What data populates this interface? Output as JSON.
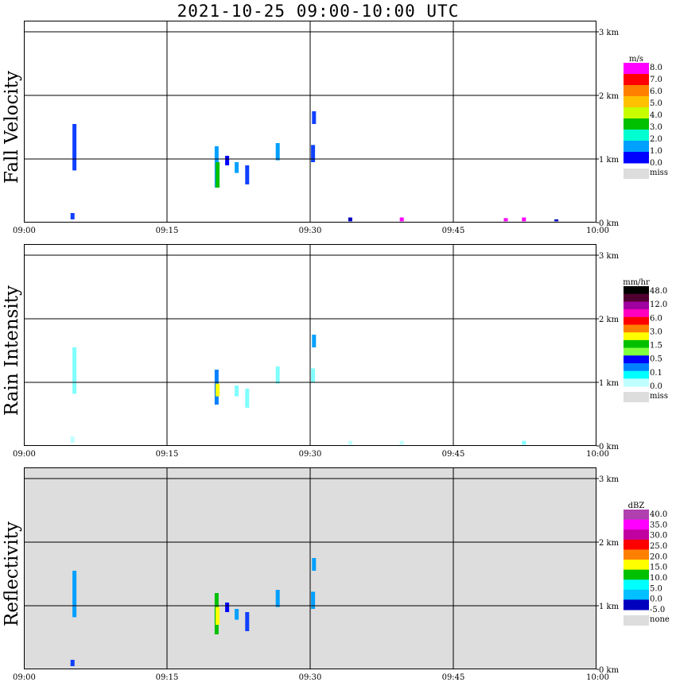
{
  "title": "2021-10-25   09:00-10:00 UTC",
  "x_tick_labels": [
    "09:00",
    "09:15",
    "09:30",
    "09:45",
    "10:00"
  ],
  "y_tick_labels": [
    "0 km",
    "1 km",
    "2 km",
    "3 km"
  ],
  "chart_data": [
    {
      "type": "heatmap",
      "ylabel": "Fall Velocity",
      "unit": "m/s",
      "xlim": [
        "09:00",
        "10:00"
      ],
      "ylim_km": [
        0,
        3
      ],
      "background": "#ffffff",
      "colorbar": {
        "labels": [
          "8.0",
          "7.0",
          "6.0",
          "5.0",
          "4.0",
          "3.0",
          "2.0",
          "1.0",
          "0.0"
        ],
        "colors": [
          "#ff00ff",
          "#ff0000",
          "#ff8000",
          "#ffc000",
          "#c8ff00",
          "#00c000",
          "#00ffd0",
          "#00a0ff",
          "#0000ff"
        ],
        "miss_label": "miss",
        "miss_color": "#dddddd"
      },
      "echoes": [
        {
          "t_min": 5.3,
          "km_lo": 0.82,
          "km_hi": 1.55,
          "color": "#1040ff"
        },
        {
          "t_min": 20.2,
          "km_lo": 0.55,
          "km_hi": 1.2,
          "color": "#00a0ff"
        },
        {
          "t_min": 20.3,
          "km_lo": 0.55,
          "km_hi": 0.95,
          "color": "#00c000"
        },
        {
          "t_min": 21.3,
          "km_lo": 0.9,
          "km_hi": 1.05,
          "color": "#0000ff"
        },
        {
          "t_min": 22.3,
          "km_lo": 0.78,
          "km_hi": 0.95,
          "color": "#00a0ff"
        },
        {
          "t_min": 23.4,
          "km_lo": 0.6,
          "km_hi": 0.9,
          "color": "#1040ff"
        },
        {
          "t_min": 26.6,
          "km_lo": 0.98,
          "km_hi": 1.25,
          "color": "#00a0ff"
        },
        {
          "t_min": 30.3,
          "km_lo": 0.95,
          "km_hi": 1.22,
          "color": "#1040ff"
        },
        {
          "t_min": 30.4,
          "km_lo": 1.55,
          "km_hi": 1.75,
          "color": "#1040ff"
        },
        {
          "t_min": 5.1,
          "km_lo": 0.05,
          "km_hi": 0.15,
          "color": "#1040ff"
        },
        {
          "t_min": 34.2,
          "km_lo": 0.02,
          "km_hi": 0.08,
          "color": "#0000c0"
        },
        {
          "t_min": 39.6,
          "km_lo": 0.02,
          "km_hi": 0.08,
          "color": "#ff00ff"
        },
        {
          "t_min": 50.5,
          "km_lo": 0.02,
          "km_hi": 0.07,
          "color": "#ff00ff"
        },
        {
          "t_min": 52.4,
          "km_lo": 0.02,
          "km_hi": 0.08,
          "color": "#ff00ff"
        },
        {
          "t_min": 55.8,
          "km_lo": 0.02,
          "km_hi": 0.05,
          "color": "#0000c0"
        }
      ]
    },
    {
      "type": "heatmap",
      "ylabel": "Rain Intensity",
      "unit": "mm/hr",
      "xlim": [
        "09:00",
        "10:00"
      ],
      "ylim_km": [
        0,
        3
      ],
      "background": "#ffffff",
      "colorbar": {
        "labels": [
          "48.0",
          "12.0",
          "6.0",
          "3.0",
          "1.5",
          "0.5",
          "0.1",
          "0.0"
        ],
        "colors": [
          "#000000",
          "#500030",
          "#a000a0",
          "#ff00c0",
          "#ff0000",
          "#ff8000",
          "#ffff00",
          "#00c000",
          "#80ff40",
          "#0000ff",
          "#0080ff",
          "#00ffff",
          "#c0ffff"
        ],
        "miss_label": "miss",
        "miss_color": "#dddddd"
      },
      "echoes": [
        {
          "t_min": 5.3,
          "km_lo": 0.82,
          "km_hi": 1.55,
          "color": "#80ffff"
        },
        {
          "t_min": 20.2,
          "km_lo": 0.65,
          "km_hi": 1.2,
          "color": "#0080ff"
        },
        {
          "t_min": 20.3,
          "km_lo": 0.78,
          "km_hi": 0.98,
          "color": "#ffff00"
        },
        {
          "t_min": 22.3,
          "km_lo": 0.78,
          "km_hi": 0.95,
          "color": "#80ffff"
        },
        {
          "t_min": 23.4,
          "km_lo": 0.6,
          "km_hi": 0.9,
          "color": "#80ffff"
        },
        {
          "t_min": 26.6,
          "km_lo": 0.98,
          "km_hi": 1.25,
          "color": "#80ffff"
        },
        {
          "t_min": 30.3,
          "km_lo": 1.0,
          "km_hi": 1.22,
          "color": "#80ffff"
        },
        {
          "t_min": 30.4,
          "km_lo": 1.55,
          "km_hi": 1.75,
          "color": "#00a0ff"
        },
        {
          "t_min": 5.1,
          "km_lo": 0.05,
          "km_hi": 0.15,
          "color": "#c0ffff"
        },
        {
          "t_min": 34.2,
          "km_lo": 0.02,
          "km_hi": 0.08,
          "color": "#c0ffff"
        },
        {
          "t_min": 39.6,
          "km_lo": 0.02,
          "km_hi": 0.08,
          "color": "#c0ffff"
        },
        {
          "t_min": 52.4,
          "km_lo": 0.02,
          "km_hi": 0.08,
          "color": "#80ffff"
        }
      ]
    },
    {
      "type": "heatmap",
      "ylabel": "Reflectivity",
      "unit": "dBZ",
      "xlim": [
        "09:00",
        "10:00"
      ],
      "ylim_km": [
        0,
        3
      ],
      "background": "#dddddd",
      "colorbar": {
        "labels": [
          "40.0",
          "35.0",
          "30.0",
          "25.0",
          "20.0",
          "15.0",
          "10.0",
          "5.0",
          "0.0",
          "-5.0"
        ],
        "colors": [
          "#b040b0",
          "#ff00ff",
          "#c000a0",
          "#ff0000",
          "#ff8000",
          "#ffff00",
          "#00c000",
          "#00ffff",
          "#00c0ff",
          "#0000c0"
        ],
        "miss_label": "none",
        "miss_color": "#dddddd"
      },
      "echoes": [
        {
          "t_min": 5.3,
          "km_lo": 0.82,
          "km_hi": 1.55,
          "color": "#00a0ff"
        },
        {
          "t_min": 20.2,
          "km_lo": 0.55,
          "km_hi": 1.2,
          "color": "#00c000"
        },
        {
          "t_min": 20.3,
          "km_lo": 0.7,
          "km_hi": 0.98,
          "color": "#ffff00"
        },
        {
          "t_min": 21.3,
          "km_lo": 0.9,
          "km_hi": 1.05,
          "color": "#0000ff"
        },
        {
          "t_min": 22.3,
          "km_lo": 0.78,
          "km_hi": 0.95,
          "color": "#00a0ff"
        },
        {
          "t_min": 23.4,
          "km_lo": 0.6,
          "km_hi": 0.9,
          "color": "#1040ff"
        },
        {
          "t_min": 26.6,
          "km_lo": 0.98,
          "km_hi": 1.25,
          "color": "#00a0ff"
        },
        {
          "t_min": 30.3,
          "km_lo": 0.95,
          "km_hi": 1.22,
          "color": "#00a0ff"
        },
        {
          "t_min": 30.4,
          "km_lo": 1.55,
          "km_hi": 1.75,
          "color": "#00a0ff"
        },
        {
          "t_min": 5.1,
          "km_lo": 0.05,
          "km_hi": 0.15,
          "color": "#1040ff"
        }
      ]
    }
  ]
}
